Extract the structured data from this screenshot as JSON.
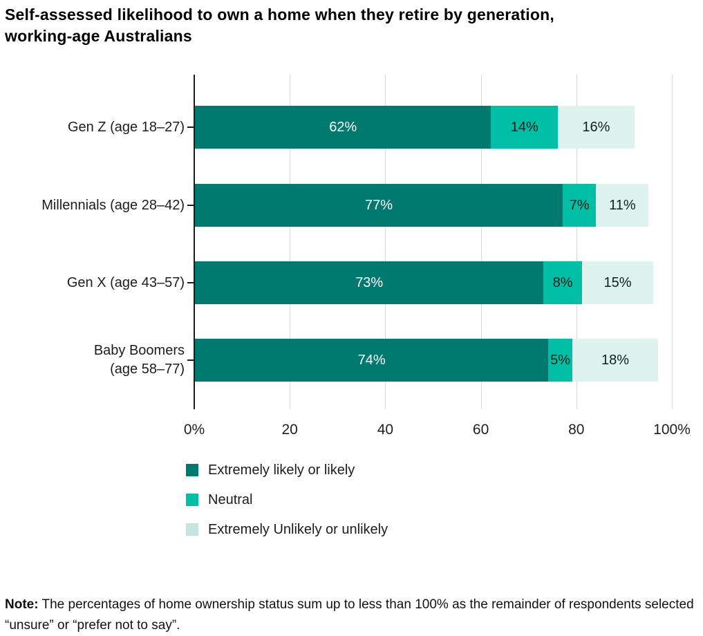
{
  "title": {
    "line1": "Self-assessed likelihood to own a home when they retire by generation,",
    "line2": "working-age Australians"
  },
  "chart_data": {
    "type": "bar",
    "orientation": "horizontal",
    "stacked": true,
    "title": "Self-assessed likelihood to own a home when they retire by generation, working-age Australians",
    "categories": [
      "Gen Z (age 18–27)",
      "Millennials (age 28–42)",
      "Gen X (age 43–57)",
      "Baby Boomers (age 58–77)"
    ],
    "category_lines": [
      [
        "Gen Z (age 18–27)"
      ],
      [
        "Millennials (age 28–42)"
      ],
      [
        "Gen X (age 43–57)"
      ],
      [
        "Baby Boomers",
        "(age 58–77)"
      ]
    ],
    "series": [
      {
        "name": "Extremely likely or likely",
        "color": "#00796F",
        "label_color": "#ffffff",
        "values": [
          62,
          77,
          73,
          74
        ]
      },
      {
        "name": "Neutral",
        "color": "#00BFA4",
        "label_color": "#101f1d",
        "values": [
          14,
          7,
          8,
          5
        ]
      },
      {
        "name": "Extremely Unlikely or unlikely",
        "color": "#DFF3EE",
        "label_color": "#101f1d",
        "values": [
          16,
          11,
          15,
          18
        ]
      }
    ],
    "value_suffix": "%",
    "xlim": [
      0,
      100
    ],
    "x_ticks": [
      {
        "pct": 0,
        "label": "0%"
      },
      {
        "pct": 20,
        "label": "20"
      },
      {
        "pct": 40,
        "label": "40"
      },
      {
        "pct": 60,
        "label": "60"
      },
      {
        "pct": 80,
        "label": "80"
      },
      {
        "pct": 100,
        "label": "100%"
      }
    ],
    "grid": true,
    "legend_position": "bottom-left",
    "legend": [
      {
        "label": "Extremely likely or likely",
        "swatch_color": "#00796F"
      },
      {
        "label": "Neutral",
        "swatch_color": "#00BFA4"
      },
      {
        "label": "Extremely Unlikely or unlikely",
        "swatch_color": "#C7E5DF"
      }
    ]
  },
  "note": {
    "label": "Note:",
    "text": " The percentages of home ownership status sum up to less than 100% as the remainder of respondents selected “unsure” or “prefer not to say”."
  },
  "colors": {
    "axis_line": "#1a1a1a",
    "gridline": "#d8d8d8",
    "title_text": "#000000",
    "body_text": "#111111"
  }
}
